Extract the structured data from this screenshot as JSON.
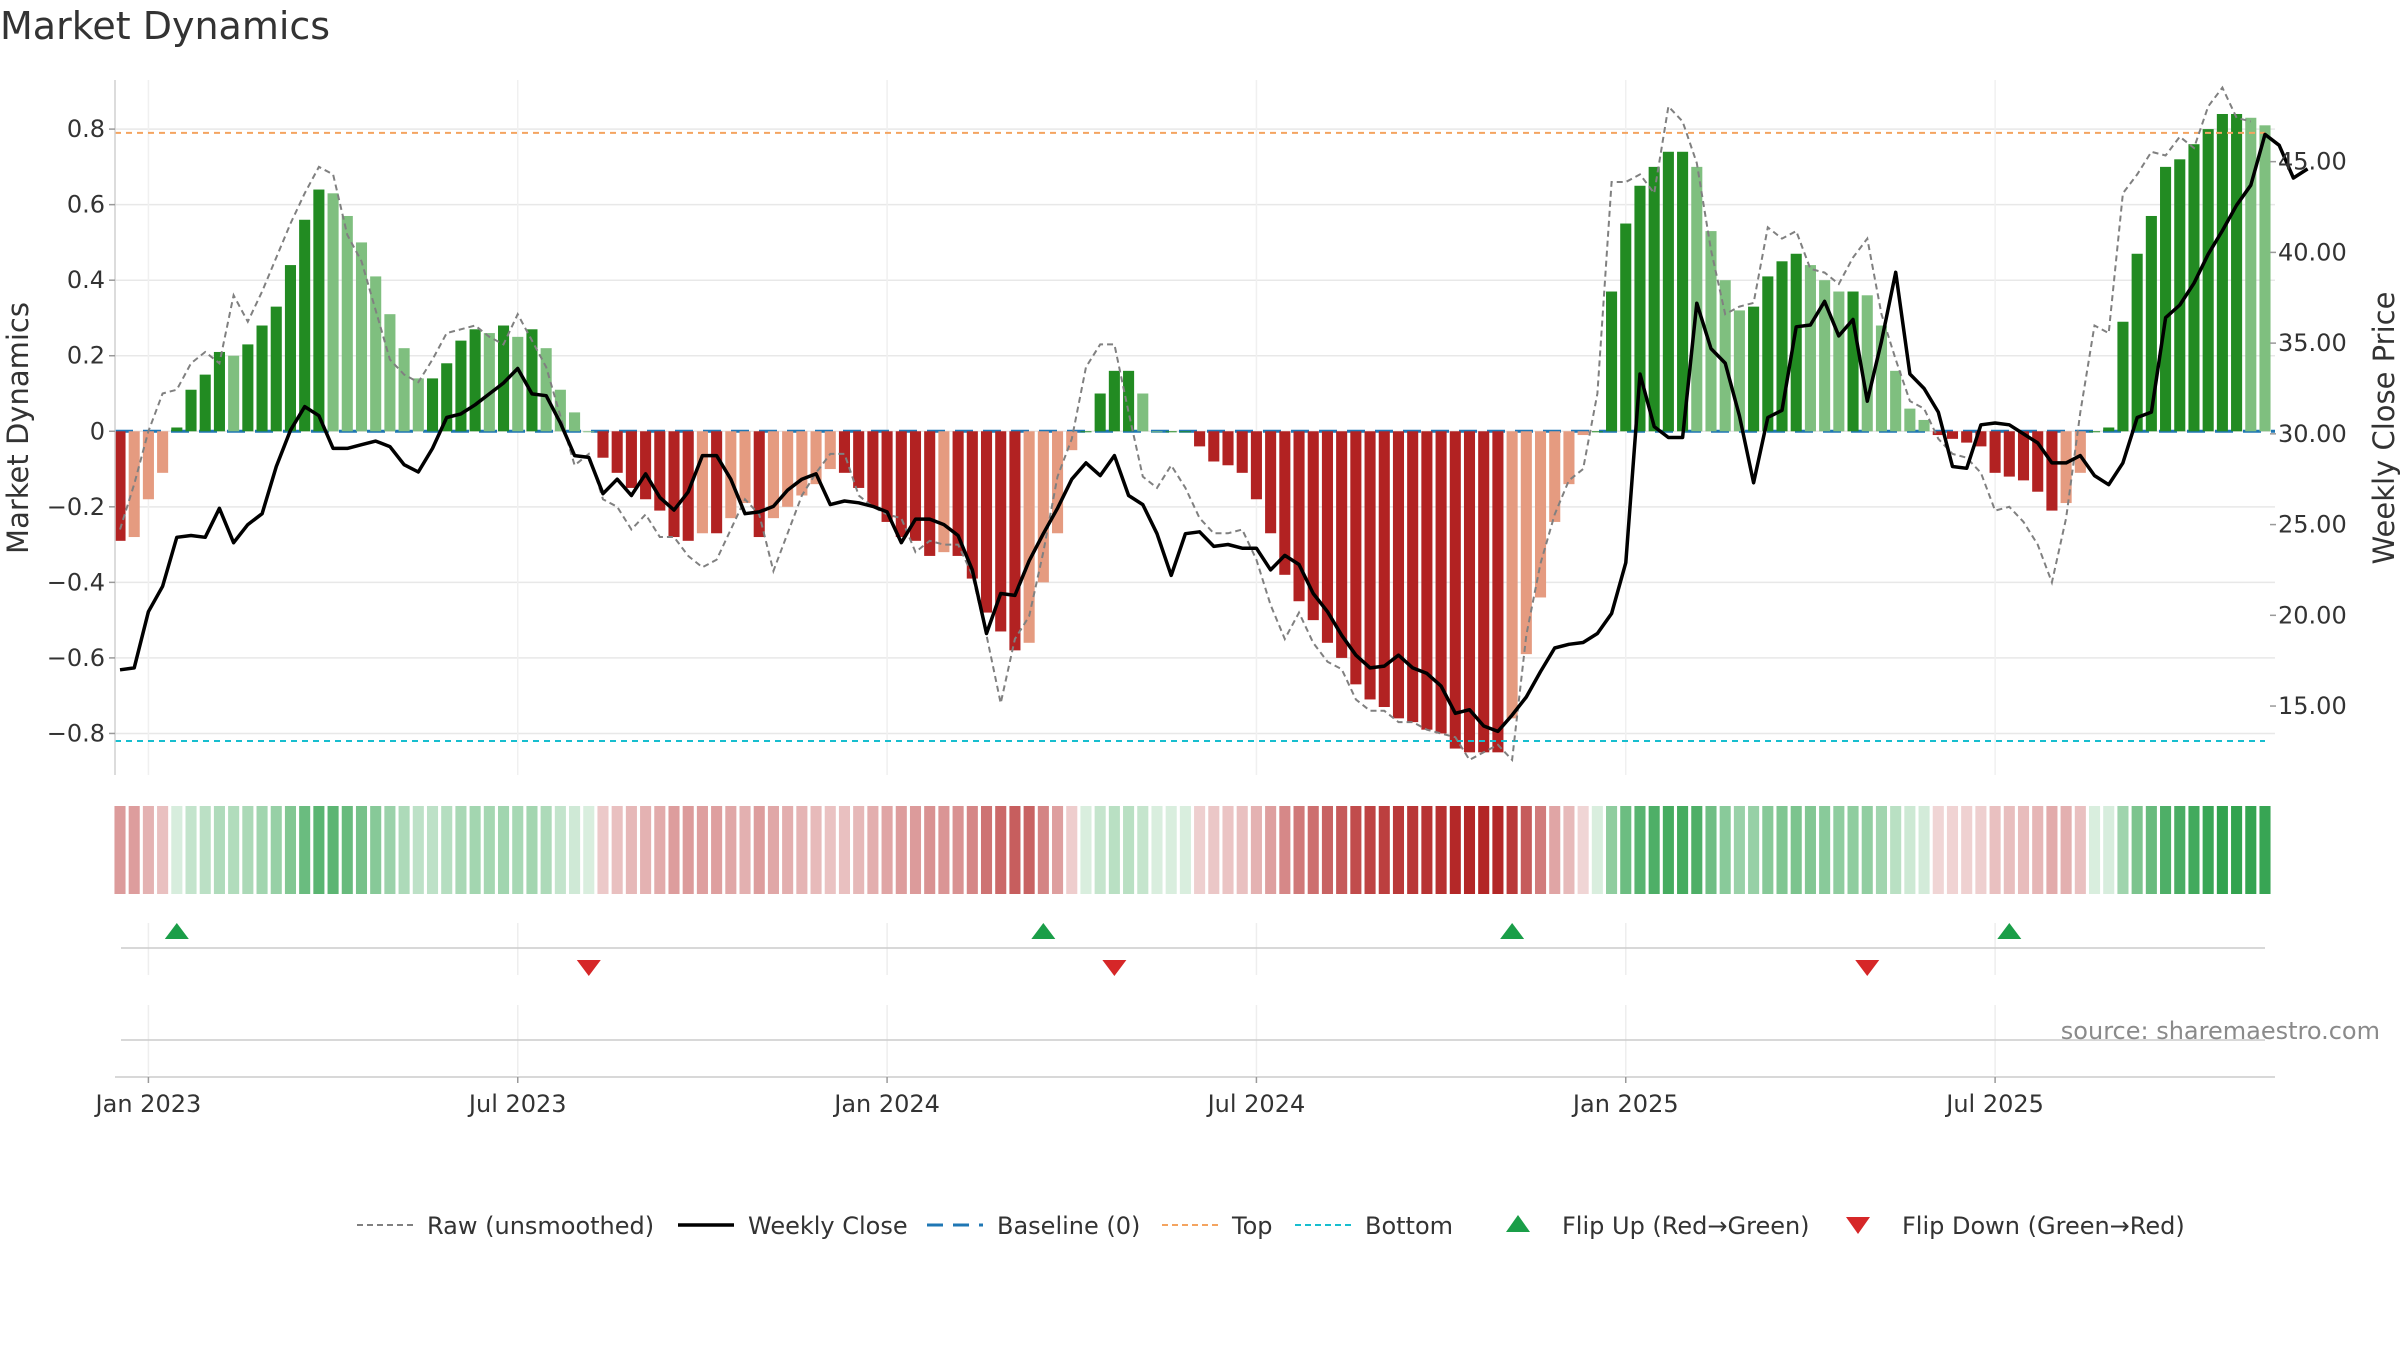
{
  "title": "Market Dynamics",
  "source": "source: sharemaestro.com",
  "legend": [
    {
      "key": "raw",
      "label": "Raw (unsmoothed)"
    },
    {
      "key": "close",
      "label": "Weekly Close"
    },
    {
      "key": "baseline",
      "label": "Baseline (0)"
    },
    {
      "key": "top",
      "label": "Top"
    },
    {
      "key": "bottom",
      "label": "Bottom"
    },
    {
      "key": "flip_up",
      "label": "Flip Up (Red→Green)"
    },
    {
      "key": "flip_down",
      "label": "Flip Down (Green→Red)"
    }
  ],
  "colors": {
    "strong_green": "#228B22",
    "light_green": "#7FBF7F",
    "strong_red": "#B22222",
    "light_red": "#E59B80",
    "raw": "#808080",
    "close": "#000000",
    "baseline": "#1F77B4",
    "top": "#F4A460",
    "bottom": "#17BECF",
    "flip_up": "#1A9E48",
    "flip_down": "#D62728"
  },
  "chart_data": {
    "type": "bar",
    "title": "Market Dynamics",
    "ylabel": "Market Dynamics",
    "y2label": "Weekly Close Price",
    "ylim": [
      -0.91,
      0.93
    ],
    "y2lim": [
      11.2,
      49.5
    ],
    "yticks": [
      "−0.8",
      "−0.6",
      "−0.4",
      "−0.2",
      "0",
      "0.2",
      "0.4",
      "0.6",
      "0.8"
    ],
    "y2ticks": [
      "15.00",
      "20.00",
      "25.00",
      "30.00",
      "35.00",
      "40.00",
      "45.00"
    ],
    "xticks": [
      "Jan 2023",
      "Jul 2023",
      "Jan 2024",
      "Jul 2024",
      "Jan 2025",
      "Jul 2025"
    ],
    "xtick_weeks": [
      2,
      28,
      54,
      80,
      106,
      132
    ],
    "top_line": 0.79,
    "bottom_line": -0.82,
    "baseline": 0,
    "grid": true,
    "week_start": "2022-12-19",
    "histogram": [
      -0.29,
      -0.28,
      -0.18,
      -0.11,
      0.01,
      0.11,
      0.15,
      0.21,
      0.2,
      0.23,
      0.28,
      0.33,
      0.44,
      0.56,
      0.64,
      0.63,
      0.57,
      0.5,
      0.41,
      0.31,
      0.22,
      0.14,
      0.14,
      0.18,
      0.24,
      0.27,
      0.26,
      0.28,
      0.25,
      0.27,
      0.22,
      0.11,
      0.05,
      0,
      -0.07,
      -0.11,
      -0.15,
      -0.18,
      -0.21,
      -0.28,
      -0.29,
      -0.27,
      -0.27,
      -0.23,
      -0.19,
      -0.28,
      -0.23,
      -0.2,
      -0.17,
      -0.14,
      -0.1,
      -0.11,
      -0.15,
      -0.2,
      -0.24,
      -0.28,
      -0.29,
      -0.33,
      -0.32,
      -0.33,
      -0.39,
      -0.48,
      -0.53,
      -0.58,
      -0.56,
      -0.4,
      -0.27,
      -0.05,
      0,
      0.1,
      0.16,
      0.16,
      0.1,
      0,
      0,
      0,
      -0.04,
      -0.08,
      -0.09,
      -0.11,
      -0.18,
      -0.27,
      -0.38,
      -0.45,
      -0.5,
      -0.56,
      -0.6,
      -0.67,
      -0.71,
      -0.73,
      -0.76,
      -0.77,
      -0.79,
      -0.8,
      -0.84,
      -0.85,
      -0.85,
      -0.85,
      -0.76,
      -0.59,
      -0.44,
      -0.24,
      -0.14,
      -0.01,
      0,
      0.37,
      0.55,
      0.65,
      0.7,
      0.74,
      0.74,
      0.7,
      0.53,
      0.4,
      0.32,
      0.33,
      0.41,
      0.45,
      0.47,
      0.44,
      0.4,
      0.37,
      0.37,
      0.36,
      0.28,
      0.16,
      0.06,
      0.03,
      -0.01,
      -0.02,
      -0.03,
      -0.04,
      -0.11,
      -0.12,
      -0.13,
      -0.16,
      -0.21,
      -0.19,
      -0.11,
      0,
      0.01,
      0.29,
      0.47,
      0.57,
      0.7,
      0.72,
      0.76,
      0.8,
      0.84,
      0.84,
      0.83,
      0.81
    ],
    "raw": [
      -0.26,
      -0.14,
      0,
      0.1,
      0.11,
      0.18,
      0.21,
      0.18,
      0.36,
      0.29,
      0.37,
      0.46,
      0.55,
      0.63,
      0.7,
      0.68,
      0.52,
      0.45,
      0.32,
      0.19,
      0.15,
      0.13,
      0.19,
      0.26,
      0.27,
      0.28,
      0.25,
      0.23,
      0.31,
      0.24,
      0.17,
      0.04,
      -0.09,
      -0.06,
      -0.18,
      -0.2,
      -0.26,
      -0.22,
      -0.28,
      -0.28,
      -0.33,
      -0.36,
      -0.34,
      -0.26,
      -0.18,
      -0.22,
      -0.37,
      -0.27,
      -0.17,
      -0.11,
      -0.06,
      -0.06,
      -0.17,
      -0.2,
      -0.22,
      -0.23,
      -0.32,
      -0.29,
      -0.3,
      -0.3,
      -0.38,
      -0.54,
      -0.72,
      -0.55,
      -0.49,
      -0.32,
      -0.12,
      -0.02,
      0.17,
      0.23,
      0.23,
      0.05,
      -0.12,
      -0.15,
      -0.09,
      -0.15,
      -0.23,
      -0.27,
      -0.27,
      -0.26,
      -0.34,
      -0.46,
      -0.55,
      -0.48,
      -0.56,
      -0.61,
      -0.63,
      -0.71,
      -0.74,
      -0.74,
      -0.77,
      -0.77,
      -0.79,
      -0.8,
      -0.81,
      -0.87,
      -0.85,
      -0.83,
      -0.87,
      -0.54,
      -0.35,
      -0.22,
      -0.13,
      -0.1,
      0.1,
      0.66,
      0.66,
      0.68,
      0.63,
      0.86,
      0.82,
      0.71,
      0.48,
      0.31,
      0.33,
      0.34,
      0.54,
      0.51,
      0.53,
      0.43,
      0.42,
      0.39,
      0.46,
      0.51,
      0.31,
      0.19,
      0.08,
      0.06,
      -0.02,
      -0.06,
      -0.07,
      -0.11,
      -0.21,
      -0.2,
      -0.24,
      -0.3,
      -0.4,
      -0.23,
      0.05,
      0.28,
      0.26,
      0.63,
      0.68,
      0.74,
      0.73,
      0.78,
      0.75,
      0.86,
      0.91,
      0.83,
      0.82
    ],
    "close": [
      17.0,
      17.1,
      20.2,
      21.6,
      24.3,
      24.4,
      24.3,
      25.9,
      24.0,
      25.0,
      25.6,
      28.2,
      30.2,
      31.5,
      31.0,
      29.2,
      29.2,
      29.4,
      29.6,
      29.3,
      28.3,
      27.9,
      29.2,
      30.9,
      31.1,
      31.6,
      32.2,
      32.8,
      33.6,
      32.2,
      32.1,
      30.6,
      28.8,
      28.7,
      26.7,
      27.5,
      26.6,
      27.8,
      26.5,
      25.8,
      26.8,
      28.8,
      28.8,
      27.5,
      25.6,
      25.7,
      26.0,
      26.9,
      27.5,
      27.8,
      26.1,
      26.3,
      26.2,
      26.0,
      25.7,
      24.0,
      25.3,
      25.3,
      25.0,
      24.4,
      22.5,
      19.0,
      21.2,
      21.1,
      23.0,
      24.5,
      25.9,
      27.5,
      28.4,
      27.7,
      28.8,
      26.6,
      26.1,
      24.5,
      22.2,
      24.5,
      24.6,
      23.8,
      23.9,
      23.7,
      23.7,
      22.5,
      23.3,
      22.8,
      21.2,
      20.2,
      18.9,
      17.8,
      17.1,
      17.2,
      17.8,
      17.1,
      16.8,
      16.1,
      14.6,
      14.8,
      13.9,
      13.6,
      14.5,
      15.5,
      16.9,
      18.2,
      18.4,
      18.5,
      19.0,
      20.1,
      22.9,
      33.3,
      30.4,
      29.8,
      29.8,
      37.2,
      34.7,
      33.9,
      31.0,
      27.3,
      30.9,
      31.3,
      35.9,
      36.0,
      37.3,
      35.4,
      36.3,
      31.8,
      35.1,
      38.9,
      33.3,
      32.5,
      31.2,
      28.2,
      28.1,
      30.5,
      30.6,
      30.5,
      30.0,
      29.5,
      28.4,
      28.4,
      28.8,
      27.7,
      27.2,
      28.4,
      30.9,
      31.2,
      36.4,
      37.1,
      38.3,
      39.9,
      41.2,
      42.6,
      43.7,
      46.5,
      45.9,
      44.1,
      44.6
    ],
    "flip_up_weeks": [
      4,
      65,
      98,
      133
    ],
    "flip_down_weeks": [
      33,
      70,
      123
    ],
    "legend_position": "bottom-center"
  }
}
